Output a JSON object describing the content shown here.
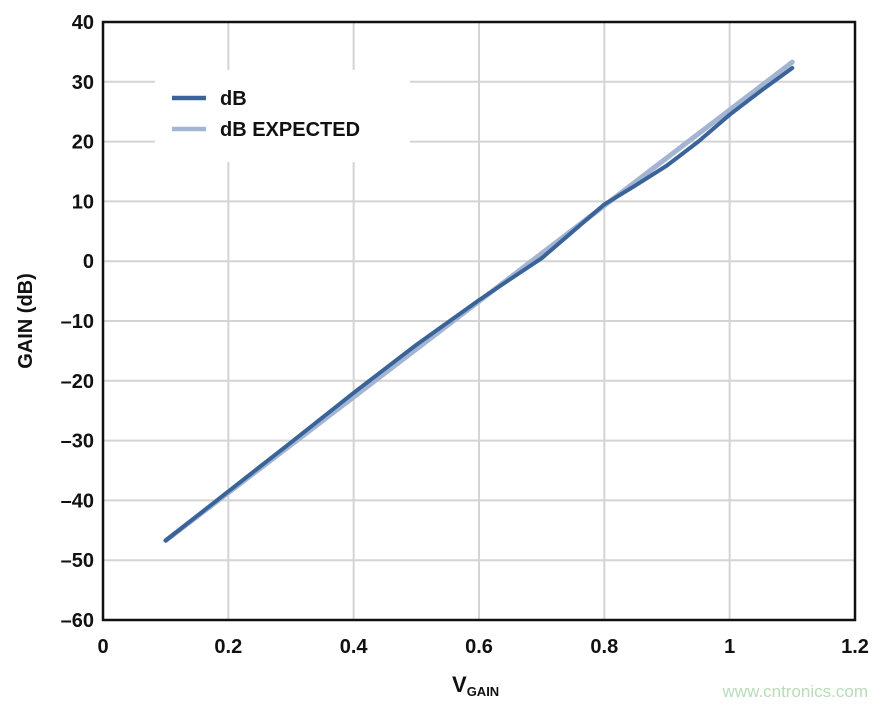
{
  "chart_data": {
    "type": "line",
    "title": "",
    "xlabel": "V",
    "xlabel_subscript": "GAIN",
    "ylabel": "GAIN (dB)",
    "xlim": [
      0,
      1.2
    ],
    "ylim": [
      -60,
      40
    ],
    "xticks": [
      0,
      0.2,
      0.4,
      0.6,
      0.8,
      1,
      1.2
    ],
    "xtick_labels": [
      "0",
      "0.2",
      "0.4",
      "0.6",
      "0.8",
      "1",
      "1.2"
    ],
    "yticks": [
      -60,
      -50,
      -40,
      -30,
      -20,
      -10,
      0,
      10,
      20,
      30,
      40
    ],
    "ytick_labels": [
      "–60",
      "–50",
      "–40",
      "–30",
      "–20",
      "–10",
      "0",
      "10",
      "20",
      "30",
      "40"
    ],
    "grid": true,
    "legend_placement": "top-left",
    "series": [
      {
        "name": "dB",
        "color": "#3a6499",
        "x": [
          0.1,
          0.2,
          0.3,
          0.4,
          0.5,
          0.6,
          0.65,
          0.7,
          0.75,
          0.8,
          0.85,
          0.9,
          0.95,
          1.0,
          1.05,
          1.1
        ],
        "y": [
          -46.7,
          -38.5,
          -30.3,
          -22.0,
          -14.0,
          -6.5,
          -3.0,
          0.5,
          5.0,
          9.5,
          12.7,
          16.0,
          20.0,
          24.5,
          28.5,
          32.3
        ]
      },
      {
        "name": "dB EXPECTED",
        "color": "#a3b5d3",
        "x": [
          0.1,
          1.1
        ],
        "y": [
          -46.7,
          33.3
        ]
      }
    ]
  },
  "watermark": "www.cntronics.com"
}
